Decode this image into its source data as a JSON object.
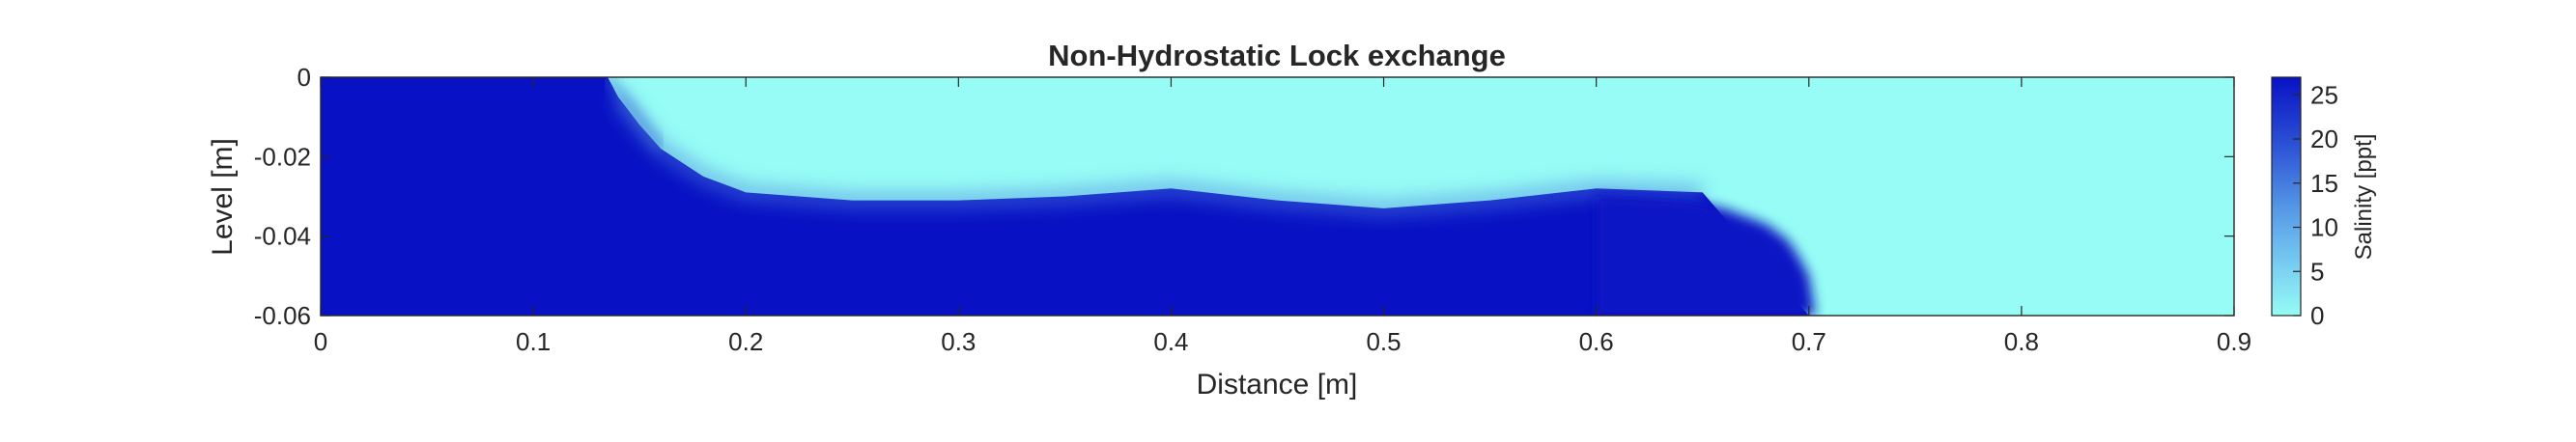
{
  "chart_data": {
    "type": "heatmap",
    "title": "Non-Hydrostatic Lock exchange",
    "xlabel": "Distance [m]",
    "ylabel": "Level [m]",
    "xlim": [
      0,
      0.9
    ],
    "ylim": [
      -0.06,
      0
    ],
    "xticks": [
      {
        "value": 0,
        "label": "0"
      },
      {
        "value": 0.1,
        "label": "0.1"
      },
      {
        "value": 0.2,
        "label": "0.2"
      },
      {
        "value": 0.3,
        "label": "0.3"
      },
      {
        "value": 0.4,
        "label": "0.4"
      },
      {
        "value": 0.5,
        "label": "0.5"
      },
      {
        "value": 0.6,
        "label": "0.6"
      },
      {
        "value": 0.7,
        "label": "0.7"
      },
      {
        "value": 0.8,
        "label": "0.8"
      },
      {
        "value": 0.9,
        "label": "0.9"
      }
    ],
    "yticks": [
      {
        "value": 0,
        "label": "0"
      },
      {
        "value": -0.02,
        "label": "-0.02"
      },
      {
        "value": -0.04,
        "label": "-0.04"
      },
      {
        "value": -0.06,
        "label": "-0.06"
      }
    ],
    "colorbar": {
      "label": "Salinity [ppt]",
      "clim": [
        0,
        27
      ],
      "ticks": [
        {
          "value": 0,
          "label": "0"
        },
        {
          "value": 5,
          "label": "5"
        },
        {
          "value": 10,
          "label": "10"
        },
        {
          "value": 15,
          "label": "15"
        },
        {
          "value": 20,
          "label": "20"
        },
        {
          "value": 25,
          "label": "25"
        }
      ],
      "colors": {
        "low": "#96fcf5",
        "high": "#0812c4"
      }
    },
    "salinity_range_ppt": {
      "fresh": 0,
      "saline": 27
    },
    "interface": {
      "description": "lower boundary of fresh-water layer (level in m) vs distance; region above is fresh (0 ppt), below is saline (27 ppt)",
      "x": [
        0.0,
        0.135,
        0.14,
        0.15,
        0.16,
        0.18,
        0.2,
        0.25,
        0.3,
        0.35,
        0.4,
        0.45,
        0.5,
        0.55,
        0.6,
        0.65,
        0.7
      ],
      "level": [
        0.0,
        0.0,
        -0.005,
        -0.012,
        -0.018,
        -0.025,
        -0.029,
        -0.031,
        -0.031,
        -0.03,
        -0.028,
        -0.031,
        -0.033,
        -0.031,
        -0.028,
        -0.029,
        -0.06
      ]
    },
    "gravity_current_head": {
      "description": "upper boundary of saline tongue (level in m) vs distance; saline water to the left of and beneath this curve",
      "x": [
        0.6,
        0.64,
        0.66,
        0.68,
        0.69,
        0.695,
        0.7,
        0.703
      ],
      "level": [
        -0.03,
        -0.031,
        -0.033,
        -0.037,
        -0.041,
        -0.045,
        -0.05,
        -0.06
      ]
    }
  }
}
